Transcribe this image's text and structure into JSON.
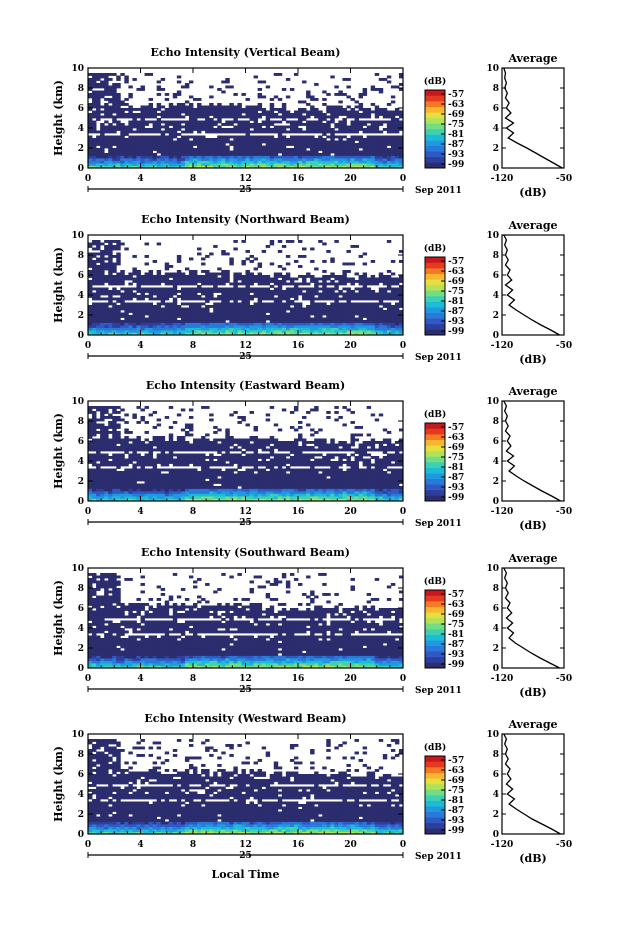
{
  "figure": {
    "xlabel": "Local Time"
  },
  "colorbar": {
    "label": "(dB)",
    "ticks": [
      "-57",
      "-63",
      "-69",
      "-75",
      "-81",
      "-87",
      "-93",
      "-99"
    ],
    "colors": [
      "#2b2d6e",
      "#2f3e9a",
      "#2f59c4",
      "#2a78d8",
      "#1f9ae0",
      "#1cbcd6",
      "#3ed0b3",
      "#72dd82",
      "#b2e25a",
      "#e6df3d",
      "#f8b52f",
      "#f47a24",
      "#e53a20",
      "#c8171d"
    ]
  },
  "chart_data": [
    {
      "type": "heatmap",
      "title": "Echo Intensity (Vertical Beam)",
      "xlabel": "",
      "ylabel": "Height (km)",
      "x_ticks": [
        "0",
        "4",
        "8",
        "12",
        "16",
        "20",
        "0"
      ],
      "xlim": [
        0,
        24
      ],
      "ylim": [
        0,
        10
      ],
      "y_ticks": [
        "0",
        "2",
        "4",
        "6",
        "8",
        "10"
      ],
      "date_day": "25",
      "date_suffix": "Sep 2011",
      "average": {
        "title": "Average",
        "xlabel": "(dB)",
        "x_ticks": [
          "-120",
          "-50"
        ],
        "xlim": [
          -120,
          -50
        ],
        "height": [
          0,
          0.5,
          1,
          1.5,
          2,
          2.5,
          3,
          3.5,
          4,
          4.5,
          5,
          5.5,
          6,
          6.5,
          7,
          7.5,
          8,
          8.5,
          9,
          9.5,
          10
        ],
        "db": [
          -52,
          -62,
          -72,
          -82,
          -92,
          -103,
          -113,
          -107,
          -115,
          -107,
          -116,
          -110,
          -115,
          -112,
          -116,
          -114,
          -117,
          -115,
          -117,
          -116,
          -118
        ]
      }
    },
    {
      "type": "heatmap",
      "title": "Echo Intensity (Northward Beam)",
      "xlabel": "",
      "ylabel": "Height (km)",
      "x_ticks": [
        "0",
        "4",
        "8",
        "12",
        "16",
        "20",
        "0"
      ],
      "xlim": [
        0,
        24
      ],
      "ylim": [
        0,
        10
      ],
      "y_ticks": [
        "0",
        "2",
        "4",
        "6",
        "8",
        "10"
      ],
      "date_day": "25",
      "date_suffix": "Sep 2011",
      "average": {
        "title": "Average",
        "xlabel": "(dB)",
        "x_ticks": [
          "-120",
          "-50"
        ],
        "xlim": [
          -120,
          -50
        ],
        "height": [
          0,
          0.5,
          1,
          1.5,
          2,
          2.5,
          3,
          3.5,
          4,
          4.5,
          5,
          5.5,
          6,
          6.5,
          7,
          7.5,
          8,
          8.5,
          9,
          9.5,
          10
        ],
        "db": [
          -55,
          -65,
          -76,
          -86,
          -95,
          -104,
          -112,
          -106,
          -114,
          -108,
          -116,
          -109,
          -114,
          -111,
          -116,
          -113,
          -116,
          -114,
          -117,
          -115,
          -118
        ]
      }
    },
    {
      "type": "heatmap",
      "title": "Echo Intensity (Eastward Beam)",
      "xlabel": "",
      "ylabel": "Height (km)",
      "x_ticks": [
        "0",
        "4",
        "8",
        "12",
        "16",
        "20",
        "0"
      ],
      "xlim": [
        0,
        24
      ],
      "ylim": [
        0,
        10
      ],
      "y_ticks": [
        "0",
        "2",
        "4",
        "6",
        "8",
        "10"
      ],
      "date_day": "25",
      "date_suffix": "Sep 2011",
      "average": {
        "title": "Average",
        "xlabel": "(dB)",
        "x_ticks": [
          "-120",
          "-50"
        ],
        "xlim": [
          -120,
          -50
        ],
        "height": [
          0,
          0.5,
          1,
          1.5,
          2,
          2.5,
          3,
          3.5,
          4,
          4.5,
          5,
          5.5,
          6,
          6.5,
          7,
          7.5,
          8,
          8.5,
          9,
          9.5,
          10
        ],
        "db": [
          -54,
          -64,
          -75,
          -85,
          -95,
          -104,
          -112,
          -106,
          -114,
          -107,
          -115,
          -110,
          -114,
          -111,
          -116,
          -113,
          -116,
          -114,
          -117,
          -115,
          -118
        ]
      }
    },
    {
      "type": "heatmap",
      "title": "Echo Intensity (Southward Beam)",
      "xlabel": "",
      "ylabel": "Height (km)",
      "x_ticks": [
        "0",
        "4",
        "8",
        "12",
        "16",
        "20",
        "0"
      ],
      "xlim": [
        0,
        24
      ],
      "ylim": [
        0,
        10
      ],
      "y_ticks": [
        "0",
        "2",
        "4",
        "6",
        "8",
        "10"
      ],
      "date_day": "25",
      "date_suffix": "Sep 2011",
      "average": {
        "title": "Average",
        "xlabel": "(dB)",
        "x_ticks": [
          "-120",
          "-50"
        ],
        "xlim": [
          -120,
          -50
        ],
        "height": [
          0,
          0.5,
          1,
          1.5,
          2,
          2.5,
          3,
          3.5,
          4,
          4.5,
          5,
          5.5,
          6,
          6.5,
          7,
          7.5,
          8,
          8.5,
          9,
          9.5,
          10
        ],
        "db": [
          -55,
          -66,
          -77,
          -87,
          -96,
          -105,
          -112,
          -107,
          -114,
          -108,
          -115,
          -109,
          -114,
          -111,
          -116,
          -113,
          -116,
          -114,
          -117,
          -115,
          -118
        ]
      }
    },
    {
      "type": "heatmap",
      "title": "Echo Intensity (Westward Beam)",
      "xlabel": "",
      "ylabel": "Height (km)",
      "x_ticks": [
        "0",
        "4",
        "8",
        "12",
        "16",
        "20",
        "0"
      ],
      "xlim": [
        0,
        24
      ],
      "ylim": [
        0,
        10
      ],
      "y_ticks": [
        "0",
        "2",
        "4",
        "6",
        "8",
        "10"
      ],
      "date_day": "25",
      "date_suffix": "Sep 2011",
      "average": {
        "title": "Average",
        "xlabel": "(dB)",
        "x_ticks": [
          "-120",
          "-50"
        ],
        "xlim": [
          -120,
          -50
        ],
        "height": [
          0,
          0.5,
          1,
          1.5,
          2,
          2.5,
          3,
          3.5,
          4,
          4.5,
          5,
          5.5,
          6,
          6.5,
          7,
          7.5,
          8,
          8.5,
          9,
          9.5,
          10
        ],
        "db": [
          -54,
          -64,
          -75,
          -86,
          -95,
          -104,
          -112,
          -106,
          -114,
          -108,
          -115,
          -110,
          -114,
          -111,
          -116,
          -113,
          -116,
          -114,
          -117,
          -115,
          -118
        ]
      }
    }
  ]
}
